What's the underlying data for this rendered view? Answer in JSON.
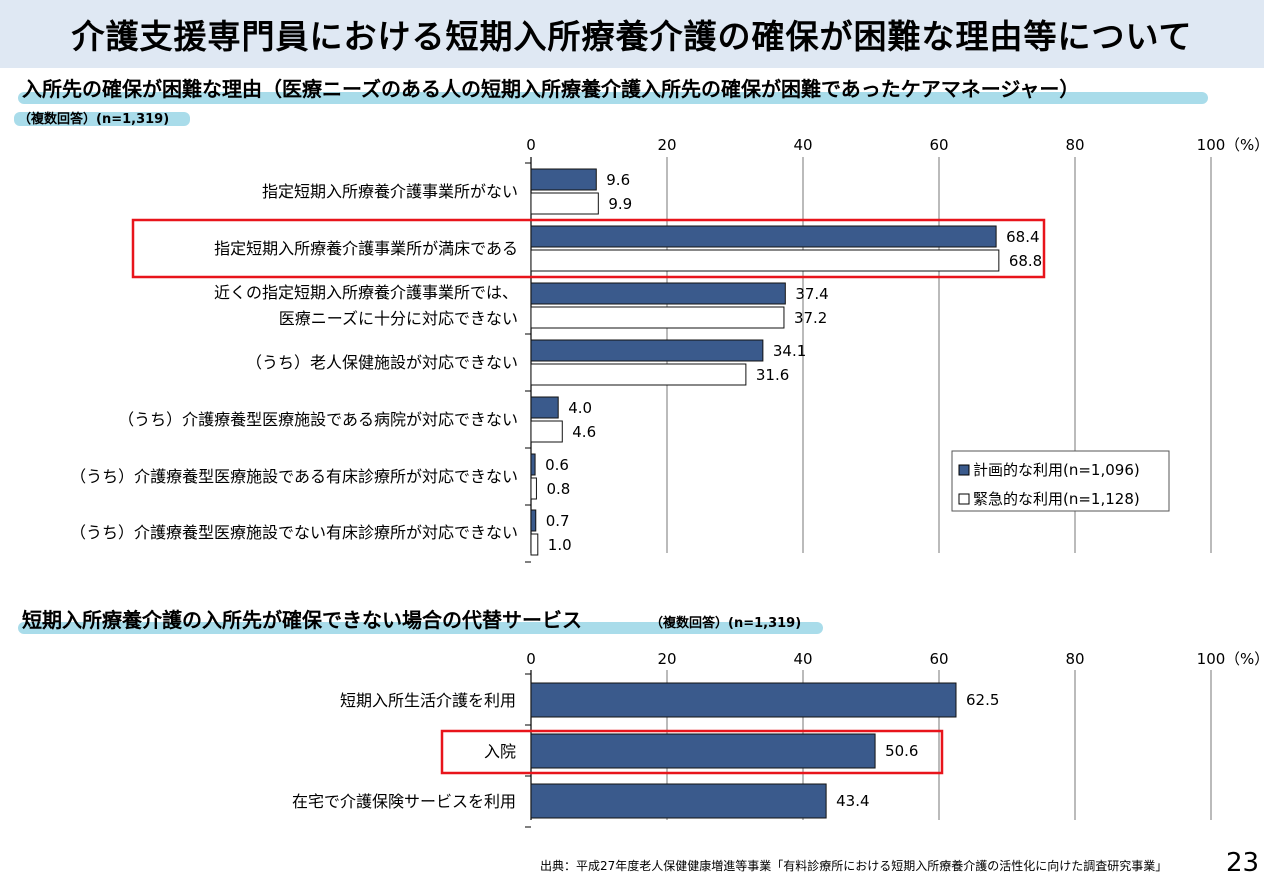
{
  "page": {
    "title": "介護支援専門員における短期入所療養介護の確保が困難な理由等について",
    "source": "出典：平成27年度老人保健健康増進等事業「有料診療所における短期入所療養介護の活性化に向けた調査研究事業」",
    "page_number": "23"
  },
  "section1": {
    "heading": "入所先の確保が困難な理由（医療ニーズのある人の短期入所療養介護入所先の確保が困難であったケアマネージャー）",
    "note": "（複数回答）(n=1,319)"
  },
  "section2": {
    "heading": "短期入所療養介護の入所先が確保できない場合の代替サービス",
    "note": "（複数回答）(n=1,319)"
  },
  "chart_data": [
    {
      "type": "bar",
      "orientation": "horizontal",
      "unit": "（%）",
      "xlim": [
        0,
        100
      ],
      "ticks": [
        "0",
        "20",
        "40",
        "60",
        "80",
        "100"
      ],
      "categories": [
        "指定短期入所療養介護事業所がない",
        "指定短期入所療養介護事業所が満床である",
        "近くの指定短期入所療養介護事業所では、\n医療ニーズに十分に対応できない",
        "（うち）老人保健施設が対応できない",
        "（うち）介護療養型医療施設である病院が対応できない",
        "（うち）介護療養型医療施設である有床診療所が対応できない",
        "（うち）介護療養型医療施設でない有床診療所が対応できない"
      ],
      "series": [
        {
          "name": "計画的な利用(n=1,096)",
          "color": "#3a5a8c",
          "values": [
            9.6,
            68.4,
            37.4,
            34.1,
            4.0,
            0.6,
            0.7
          ]
        },
        {
          "name": "緊急的な利用(n=1,128)",
          "color": "#ffffff",
          "values": [
            9.9,
            68.8,
            37.2,
            31.6,
            4.6,
            0.8,
            1.0
          ]
        }
      ],
      "highlighted_category": "指定短期入所療養介護事業所が満床である",
      "legend_position": "bottom-right",
      "grid": true
    },
    {
      "type": "bar",
      "orientation": "horizontal",
      "unit": "（%）",
      "xlim": [
        0,
        100
      ],
      "ticks": [
        "0",
        "20",
        "40",
        "60",
        "80",
        "100"
      ],
      "categories": [
        "短期入所生活介護を利用",
        "入院",
        "在宅で介護保険サービスを利用"
      ],
      "series": [
        {
          "color": "#3a5a8c",
          "values": [
            62.5,
            50.6,
            43.4
          ]
        }
      ],
      "highlighted_category": "入院",
      "grid": true
    }
  ]
}
